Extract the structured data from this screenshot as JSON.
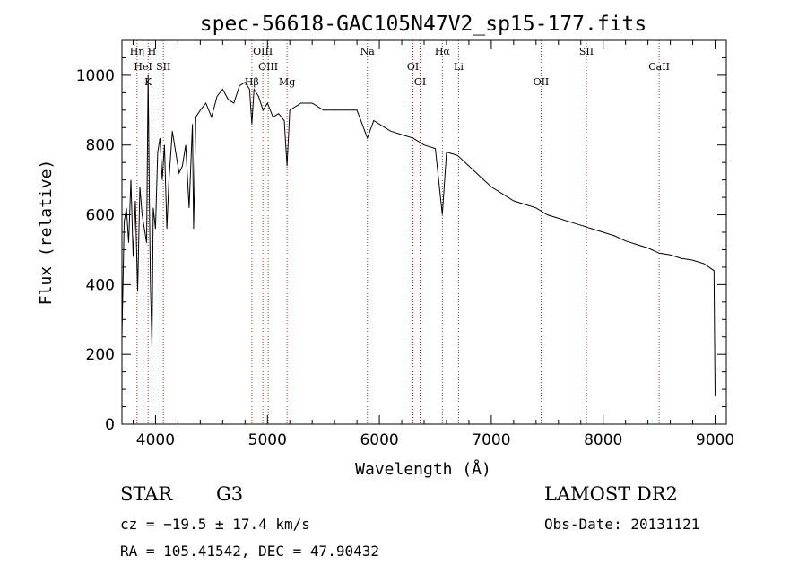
{
  "chart_data": {
    "type": "line",
    "title": "spec-56618-GAC105N47V2_sp15-177.fits",
    "xlabel": "Wavelength (Å)",
    "ylabel": "Flux (relative)",
    "xlim": [
      3700,
      9100
    ],
    "ylim": [
      0,
      1100
    ],
    "xticks": [
      4000,
      5000,
      6000,
      7000,
      8000,
      9000
    ],
    "yticks": [
      0,
      200,
      400,
      600,
      800,
      1000
    ],
    "grid": false,
    "series": [
      {
        "x": [
          3700,
          3720,
          3740,
          3760,
          3780,
          3800,
          3820,
          3840,
          3860,
          3880,
          3900,
          3920,
          3934,
          3945,
          3955,
          3968,
          3980,
          4000,
          4020,
          4040,
          4060,
          4080,
          4101,
          4120,
          4150,
          4180,
          4210,
          4240,
          4270,
          4300,
          4330,
          4340,
          4360,
          4400,
          4450,
          4500,
          4550,
          4600,
          4650,
          4700,
          4750,
          4800,
          4840,
          4861,
          4880,
          4920,
          4960,
          5000,
          5050,
          5100,
          5150,
          5175,
          5200,
          5300,
          5400,
          5500,
          5600,
          5700,
          5800,
          5893,
          5950,
          6000,
          6100,
          6200,
          6300,
          6400,
          6500,
          6563,
          6600,
          6700,
          6800,
          6900,
          7000,
          7100,
          7200,
          7300,
          7400,
          7500,
          7600,
          7700,
          7800,
          7900,
          8000,
          8100,
          8200,
          8300,
          8400,
          8500,
          8600,
          8700,
          8800,
          8900,
          8990,
          9000
        ],
        "y": [
          250,
          580,
          620,
          520,
          700,
          480,
          640,
          380,
          680,
          600,
          560,
          520,
          1000,
          640,
          400,
          220,
          620,
          560,
          780,
          820,
          700,
          800,
          560,
          700,
          840,
          780,
          720,
          740,
          800,
          620,
          860,
          560,
          880,
          900,
          920,
          880,
          940,
          960,
          930,
          920,
          970,
          980,
          960,
          860,
          960,
          940,
          900,
          920,
          880,
          890,
          870,
          740,
          900,
          920,
          920,
          900,
          900,
          900,
          900,
          820,
          870,
          860,
          840,
          830,
          820,
          800,
          790,
          600,
          780,
          770,
          740,
          710,
          680,
          660,
          640,
          630,
          620,
          600,
          590,
          580,
          570,
          560,
          550,
          540,
          525,
          515,
          505,
          490,
          485,
          475,
          470,
          460,
          440,
          80
        ]
      }
    ],
    "lines": [
      {
        "x": 3835,
        "label": "Hη"
      },
      {
        "x": 3889,
        "label": "HeI"
      },
      {
        "x": 3934,
        "label": "K"
      },
      {
        "x": 3968,
        "label": "H"
      },
      {
        "x": 4070,
        "label": "SII"
      },
      {
        "x": 4861,
        "label": "Hβ"
      },
      {
        "x": 4959,
        "label": "OIII"
      },
      {
        "x": 5007,
        "label": "OIII"
      },
      {
        "x": 5175,
        "label": "Mg"
      },
      {
        "x": 5893,
        "label": "Na"
      },
      {
        "x": 6300,
        "label": "OI"
      },
      {
        "x": 6364,
        "label": "OI"
      },
      {
        "x": 6563,
        "label": "Hα"
      },
      {
        "x": 6708,
        "label": "Li"
      },
      {
        "x": 7445,
        "label": "OII"
      },
      {
        "x": 7850,
        "label": "SII"
      },
      {
        "x": 8500,
        "label": "CaII"
      }
    ]
  },
  "info": {
    "object_class": "STAR",
    "subclass": "G3",
    "survey": "LAMOST DR2",
    "cz": "cz = −19.5 ± 17.4 km/s",
    "obs_date": "Obs-Date: 20131121",
    "coords": "RA = 105.41542, DEC =  47.90432"
  },
  "colors": {
    "line_marker": "#b03030",
    "spectrum": "#000000"
  }
}
